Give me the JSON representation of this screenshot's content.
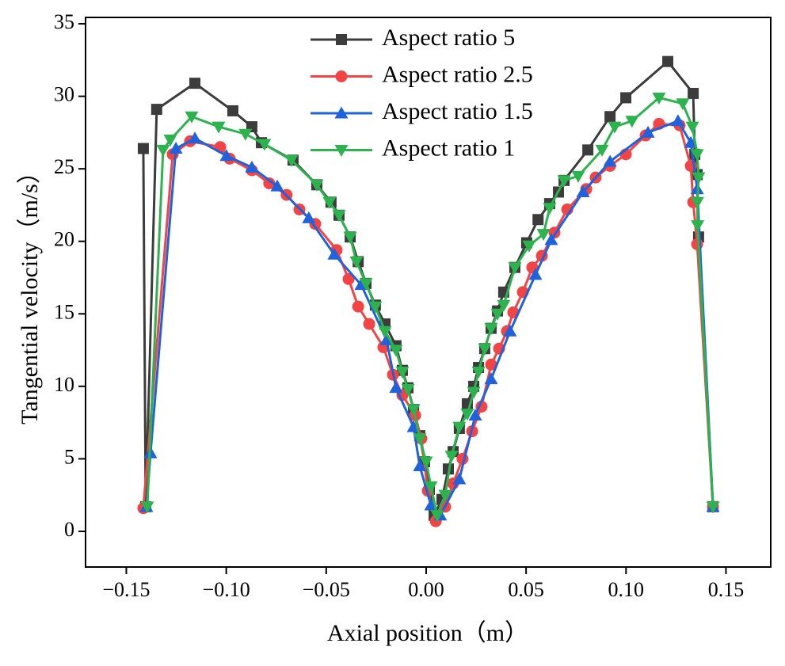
{
  "chart_data": {
    "type": "line",
    "xlabel": "Axial position（m）",
    "ylabel": "Tangential velocity（m/s）",
    "xlim": [
      -0.1704,
      0.1724
    ],
    "ylim": [
      -2.46,
      35.44
    ],
    "xticks": [
      {
        "value": -0.15,
        "label": "−0.15"
      },
      {
        "value": -0.1,
        "label": "−0.10"
      },
      {
        "value": -0.05,
        "label": "−0.05"
      },
      {
        "value": 0,
        "label": "0.00"
      },
      {
        "value": 0.05,
        "label": "0.05"
      },
      {
        "value": 0.1,
        "label": "0.10"
      },
      {
        "value": 0.15,
        "label": "0.15"
      }
    ],
    "yticks": [
      0,
      5,
      10,
      15,
      20,
      25,
      30,
      35
    ],
    "legend": "upper center",
    "series": [
      {
        "name": "Aspect ratio 5",
        "color": "#3c3c3c",
        "marker": "square",
        "x": [
          -0.1415,
          -0.1403,
          -0.1348,
          -0.1157,
          -0.0967,
          -0.0872,
          -0.0824,
          -0.0666,
          -0.0547,
          -0.0476,
          -0.0436,
          -0.038,
          -0.034,
          -0.0301,
          -0.0254,
          -0.0206,
          -0.0151,
          -0.0119,
          -0.0091,
          -0.0063,
          -0.0032,
          -0.0008,
          0.0016,
          0.004,
          0.0079,
          0.0111,
          0.0135,
          0.0166,
          0.0206,
          0.0238,
          0.0262,
          0.0293,
          0.0325,
          0.0357,
          0.0388,
          0.0444,
          0.0503,
          0.056,
          0.0618,
          0.0662,
          0.069,
          0.0809,
          0.092,
          0.0999,
          0.1209,
          0.1336,
          0.1344,
          0.1356,
          0.1363,
          0.1435
        ],
        "values": [
          26.4,
          1.7,
          29.1,
          30.9,
          29.0,
          27.9,
          26.8,
          25.6,
          23.9,
          22.7,
          21.8,
          20.3,
          18.6,
          17.1,
          15.6,
          14.3,
          12.8,
          11.1,
          9.9,
          8.4,
          6.6,
          4.8,
          2.9,
          1.1,
          2.2,
          4.3,
          5.5,
          7.1,
          8.8,
          10.0,
          11.3,
          12.6,
          14.0,
          15.2,
          16.5,
          18.2,
          19.9,
          21.5,
          22.6,
          23.4,
          24.2,
          26.3,
          28.6,
          29.9,
          32.4,
          30.2,
          26.0,
          24.6,
          20.3,
          1.7
        ]
      },
      {
        "name": "Aspect ratio 2.5",
        "color": "#f24444",
        "marker": "circle",
        "x": [
          -0.1415,
          -0.1268,
          -0.1181,
          -0.103,
          -0.0983,
          -0.0872,
          -0.0785,
          -0.0698,
          -0.0634,
          -0.0555,
          -0.0448,
          -0.0388,
          -0.034,
          -0.0285,
          -0.0214,
          -0.0166,
          -0.0119,
          -0.0055,
          -0.0024,
          0.0008,
          0.0048,
          0.0095,
          0.0135,
          0.0182,
          0.023,
          0.0277,
          0.0325,
          0.0365,
          0.0404,
          0.0436,
          0.0484,
          0.0531,
          0.0579,
          0.0642,
          0.0706,
          0.0801,
          0.0848,
          0.092,
          0.0999,
          0.1098,
          0.1165,
          0.1268,
          0.1324,
          0.1336,
          0.1356,
          0.1435
        ],
        "values": [
          1.6,
          26.0,
          26.9,
          26.5,
          25.7,
          24.9,
          24.0,
          23.2,
          22.2,
          21.2,
          19.4,
          17.4,
          15.5,
          14.3,
          12.7,
          10.8,
          9.4,
          8.0,
          6.4,
          2.8,
          0.7,
          1.7,
          3.3,
          5.0,
          6.9,
          8.6,
          11.5,
          12.6,
          13.8,
          15.1,
          16.5,
          18.2,
          19.0,
          20.6,
          22.2,
          23.6,
          24.4,
          25.2,
          26.0,
          27.3,
          28.1,
          28.0,
          25.2,
          22.7,
          19.8,
          1.7
        ]
      },
      {
        "name": "Aspect ratio 1.5",
        "color": "#1f62dc",
        "marker": "triangle-up",
        "x": [
          -0.1399,
          -0.1379,
          -0.1252,
          -0.1157,
          -0.0999,
          -0.0872,
          -0.0745,
          -0.0587,
          -0.046,
          -0.0325,
          -0.0198,
          -0.0151,
          -0.0063,
          -0.0032,
          0.0024,
          0.0071,
          0.0166,
          0.0246,
          0.0325,
          0.042,
          0.0547,
          0.0626,
          0.0785,
          0.092,
          0.111,
          0.126,
          0.1324,
          0.1356,
          0.1435
        ],
        "values": [
          1.7,
          5.4,
          26.4,
          27.1,
          25.9,
          25.1,
          23.8,
          21.6,
          19.1,
          17.0,
          13.2,
          9.9,
          7.2,
          4.5,
          1.8,
          1.1,
          3.6,
          8.0,
          10.5,
          13.8,
          17.7,
          20.1,
          23.4,
          25.5,
          27.5,
          28.3,
          26.8,
          23.6,
          1.7
        ]
      },
      {
        "name": "Aspect ratio 1",
        "color": "#2db34d",
        "marker": "triangle-down",
        "x": [
          -0.1395,
          -0.1316,
          -0.128,
          -0.1173,
          -0.1038,
          -0.0904,
          -0.0809,
          -0.0674,
          -0.0547,
          -0.0484,
          -0.0436,
          -0.038,
          -0.0349,
          -0.0301,
          -0.0254,
          -0.0206,
          -0.0151,
          -0.0119,
          -0.0091,
          -0.0063,
          -0.0032,
          0.0,
          0.0024,
          0.0055,
          0.0095,
          0.0127,
          0.0166,
          0.0206,
          0.0238,
          0.0262,
          0.0293,
          0.0325,
          0.0357,
          0.0388,
          0.0444,
          0.0515,
          0.0587,
          0.0618,
          0.069,
          0.0761,
          0.088,
          0.0943,
          0.103,
          0.1165,
          0.1284,
          0.1332,
          0.1356,
          0.1363,
          0.1357,
          0.1358,
          0.1435
        ],
        "values": [
          1.7,
          26.3,
          27.0,
          28.6,
          27.9,
          27.4,
          26.7,
          25.6,
          23.9,
          22.7,
          21.8,
          20.3,
          18.6,
          17.1,
          15.5,
          13.8,
          12.5,
          11.0,
          9.8,
          8.4,
          6.4,
          4.8,
          3.1,
          1.1,
          2.5,
          5.2,
          7.2,
          8.1,
          9.6,
          11.0,
          12.6,
          14.0,
          15.0,
          15.6,
          18.2,
          19.7,
          20.5,
          22.3,
          24.2,
          24.5,
          26.3,
          27.9,
          28.3,
          29.9,
          29.5,
          27.9,
          26.0,
          24.4,
          22.7,
          21.1,
          1.7
        ]
      }
    ]
  }
}
